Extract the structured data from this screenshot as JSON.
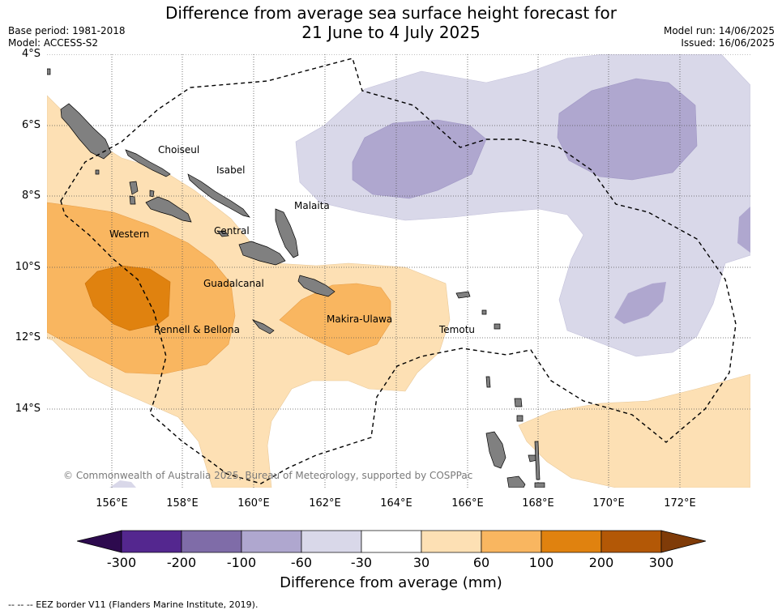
{
  "title_line1": "Difference from average sea surface height forecast for",
  "title_line2": "21 June to 4 July 2025",
  "base_period": "Base period: 1981-2018",
  "model": "Model: ACCESS-S2",
  "model_run": "Model run: 14/06/2025",
  "issued": "Issued: 16/06/2025",
  "lat_ticks": [
    "4°S",
    "6°S",
    "8°S",
    "10°S",
    "12°S",
    "14°S"
  ],
  "lon_ticks": [
    "156°E",
    "158°E",
    "160°E",
    "162°E",
    "164°E",
    "166°E",
    "168°E",
    "170°E",
    "172°E"
  ],
  "regions": {
    "choiseul": "Choiseul",
    "isabel": "Isabel",
    "malaita": "Malaita",
    "western": "Western",
    "central": "Central",
    "guadalcanal": "Guadalcanal",
    "rennell": "Rennell & Bellona",
    "makira": "Makira-Ulawa",
    "temotu": "Temotu"
  },
  "copyright": "© Commonwealth of Australia 2025, Bureau of Meteorology, supported by COSPPac",
  "colorbar": {
    "labels": [
      "-300",
      "-200",
      "-100",
      "-60",
      "-30",
      "30",
      "60",
      "100",
      "200",
      "300"
    ],
    "colors": [
      "#2d0a4e",
      "#54278f",
      "#7f6ca8",
      "#afa7cf",
      "#d9d8e9",
      "#ffffff",
      "#fde0b4",
      "#f9b660",
      "#e0820f",
      "#b35806",
      "#7f3b08"
    ],
    "title": "Difference from average (mm)"
  },
  "footnote": "--  --  -- EEZ border V11 (Flanders Marine Institute, 2019).",
  "colors": {
    "land": "#808080",
    "grid": "#555555",
    "eez_border": "#000000"
  }
}
